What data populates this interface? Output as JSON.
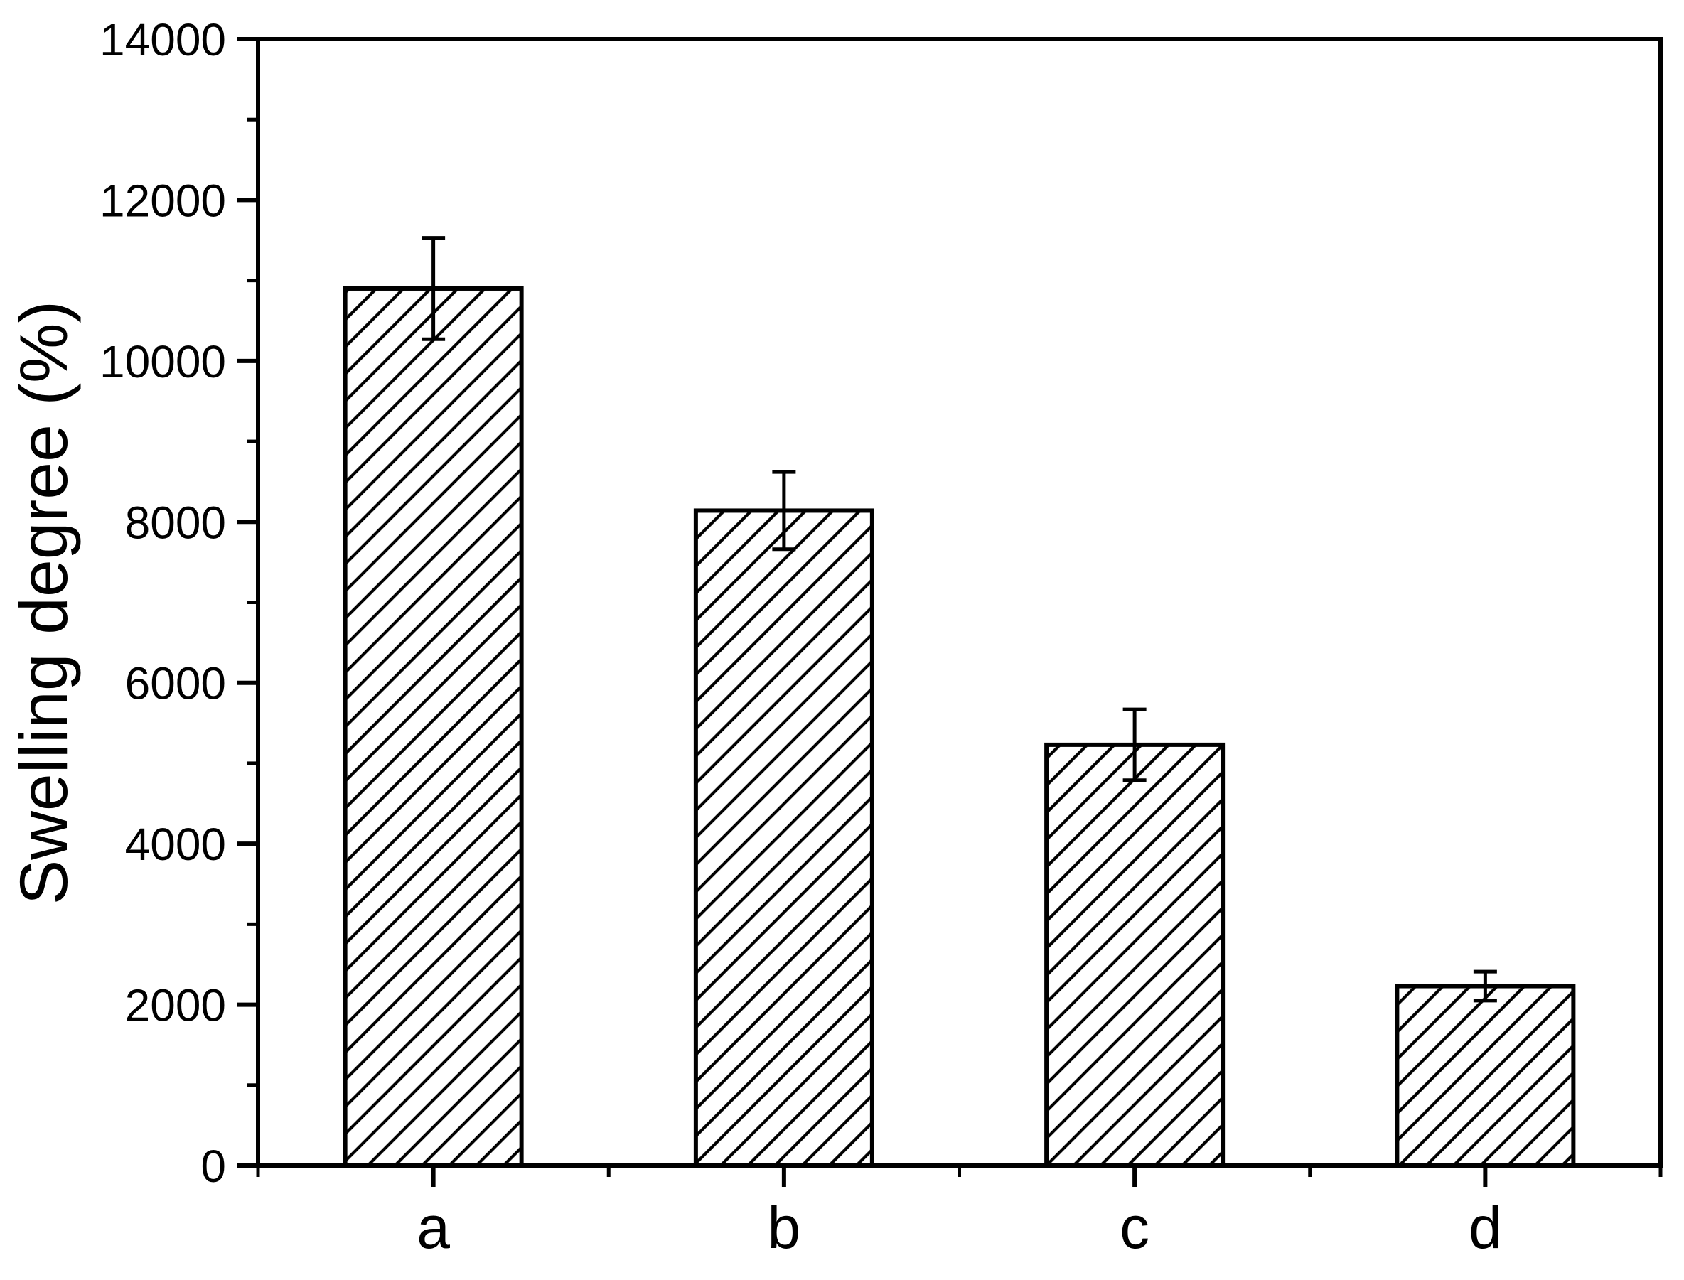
{
  "chart_data": {
    "type": "bar",
    "title": "",
    "xlabel": "",
    "ylabel": "Swelling degree (%)",
    "categories": [
      "a",
      "b",
      "c",
      "d"
    ],
    "values": [
      10900,
      8140,
      5230,
      2230
    ],
    "error_bars": [
      630,
      480,
      440,
      180
    ],
    "ylim": [
      0,
      14000
    ],
    "y_major_tick_step": 2000,
    "y_minor_tick_step": 1000,
    "y_tick_labels": [
      "0",
      "2000",
      "4000",
      "6000",
      "8000",
      "10000",
      "12000",
      "14000"
    ],
    "grid": false,
    "legend": "none",
    "bar_fill": "#ffffff",
    "bar_hatch": "forward-diagonal",
    "line_color": "#000000",
    "background_color": "#ffffff"
  }
}
